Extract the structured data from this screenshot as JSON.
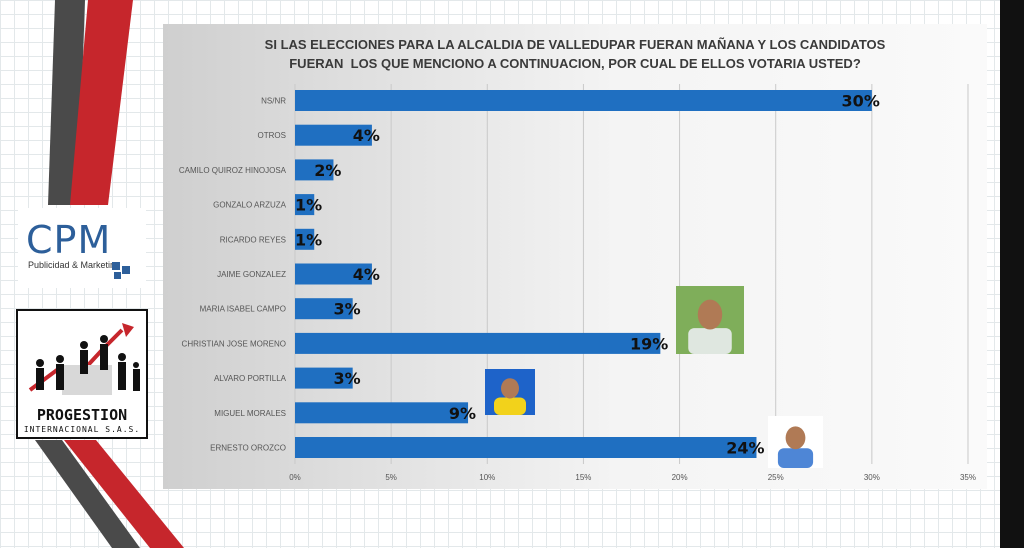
{
  "colors": {
    "bar": "#1f6fc1",
    "accent_red": "#c6262c",
    "stripe_dark": "#4a4a4a",
    "title": "#3a3a3a"
  },
  "logos": {
    "cpm": {
      "name": "CPM",
      "tagline": "Publicidad & Marketing"
    },
    "progestion": {
      "name": "PROGESTION",
      "tagline": "INTERNACIONAL S.A.S."
    }
  },
  "chart_data": {
    "type": "bar",
    "orientation": "horizontal",
    "title_lines": [
      "SI LAS ELECCIONES PARA LA ALCALDIA DE VALLEDUPAR FUERAN MAÑANA Y LOS CANDIDATOS",
      "FUERAN  LOS QUE MENCIONO A CONTINUACION, POR CUAL DE ELLOS VOTARIA USTED?"
    ],
    "categories": [
      "NS/NR",
      "OTROS",
      "CAMILO QUIROZ HINOJOSA",
      "GONZALO ARZUZA",
      "RICARDO REYES",
      "JAIME GONZALEZ",
      "MARIA ISABEL CAMPO",
      "CHRISTIAN JOSE MORENO",
      "ALVARO PORTILLA",
      "MIGUEL MORALES",
      "ERNESTO OROZCO"
    ],
    "values": [
      30,
      4,
      2,
      1,
      1,
      4,
      3,
      19,
      3,
      9,
      24
    ],
    "data_labels": [
      "30%",
      "4%",
      "2%",
      "1%",
      "1%",
      "4%",
      "3%",
      "19%",
      "3%",
      "9%",
      "24%"
    ],
    "xlim": [
      0,
      35
    ],
    "xticks": [
      "0%",
      "5%",
      "10%",
      "15%",
      "20%",
      "25%",
      "30%",
      "35%"
    ],
    "grid": "vertical",
    "photo_markers": [
      "CHRISTIAN JOSE MORENO",
      "MIGUEL MORALES",
      "ERNESTO OROZCO"
    ]
  }
}
